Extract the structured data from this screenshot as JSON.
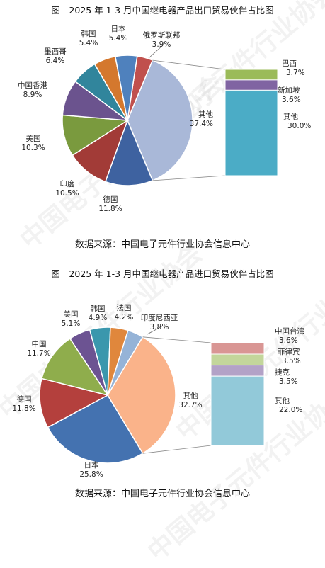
{
  "chart_data": [
    {
      "type": "pie",
      "title": "图　2025 年 1-3 月中国继电器产品出口贸易伙伴占比图",
      "source": "数据来源：中国电子元件行业协会信息中心",
      "slices": [
        {
          "label": "俄罗斯联邦",
          "value": 3.9,
          "display": "3.9%",
          "color": "#c0504d"
        },
        {
          "label": "其他",
          "value": 37.4,
          "display": "37.4%",
          "color": "#a9b8d8",
          "expanded": true
        },
        {
          "label": "德国",
          "value": 11.8,
          "display": "11.8%",
          "color": "#3e62a0"
        },
        {
          "label": "印度",
          "value": 10.5,
          "display": "10.5%",
          "color": "#a23b37"
        },
        {
          "label": "美国",
          "value": 10.3,
          "display": "10.3%",
          "color": "#7a9a3e"
        },
        {
          "label": "中国香港",
          "value": 8.9,
          "display": "8.9%",
          "color": "#6b538e"
        },
        {
          "label": "墨西哥",
          "value": 6.4,
          "display": "6.4%",
          "color": "#31859c"
        },
        {
          "label": "韩国",
          "value": 5.4,
          "display": "5.4%",
          "color": "#d4782e"
        },
        {
          "label": "日本",
          "value": 5.4,
          "display": "5.4%",
          "color": "#4f81bd"
        }
      ],
      "breakdown": [
        {
          "label": "巴西",
          "value": 3.7,
          "display": "3.7%",
          "color": "#9bbb59"
        },
        {
          "label": "新加坡",
          "value": 3.6,
          "display": "3.6%",
          "color": "#8064a2"
        },
        {
          "label": "其他",
          "value": 30.0,
          "display": "30.0%",
          "color": "#4bacc6"
        }
      ]
    },
    {
      "type": "pie",
      "title": "图　2025 年 1-3 月中国继电器产品进口贸易伙伴占比图",
      "source": "数据来源：中国电子元件行业协会信息中心",
      "slices": [
        {
          "label": "印度尼西亚",
          "value": 3.8,
          "display": "3.8%",
          "color": "#95b3d7"
        },
        {
          "label": "其他",
          "value": 32.7,
          "display": "32.7%",
          "color": "#fab38a",
          "expanded": true
        },
        {
          "label": "日本",
          "value": 25.8,
          "display": "25.8%",
          "color": "#4472b0"
        },
        {
          "label": "德国",
          "value": 11.8,
          "display": "11.8%",
          "color": "#b4403d"
        },
        {
          "label": "中国",
          "value": 11.7,
          "display": "11.7%",
          "color": "#8fad4c"
        },
        {
          "label": "美国",
          "value": 5.1,
          "display": "5.1%",
          "color": "#6c5392"
        },
        {
          "label": "韩国",
          "value": 4.9,
          "display": "4.9%",
          "color": "#3a97ad"
        },
        {
          "label": "法国",
          "value": 4.2,
          "display": "4.2%",
          "color": "#e0873c"
        }
      ],
      "breakdown": [
        {
          "label": "中国台湾",
          "value": 3.6,
          "display": "3.6%",
          "color": "#d99694"
        },
        {
          "label": "菲律宾",
          "value": 3.5,
          "display": "3.5%",
          "color": "#c3d69b"
        },
        {
          "label": "捷克",
          "value": 3.5,
          "display": "3.5%",
          "color": "#b3a2c7"
        },
        {
          "label": "其他",
          "value": 22.0,
          "display": "22.0%",
          "color": "#92c9d9"
        }
      ]
    }
  ],
  "watermark": "中国电子元件行业协会"
}
